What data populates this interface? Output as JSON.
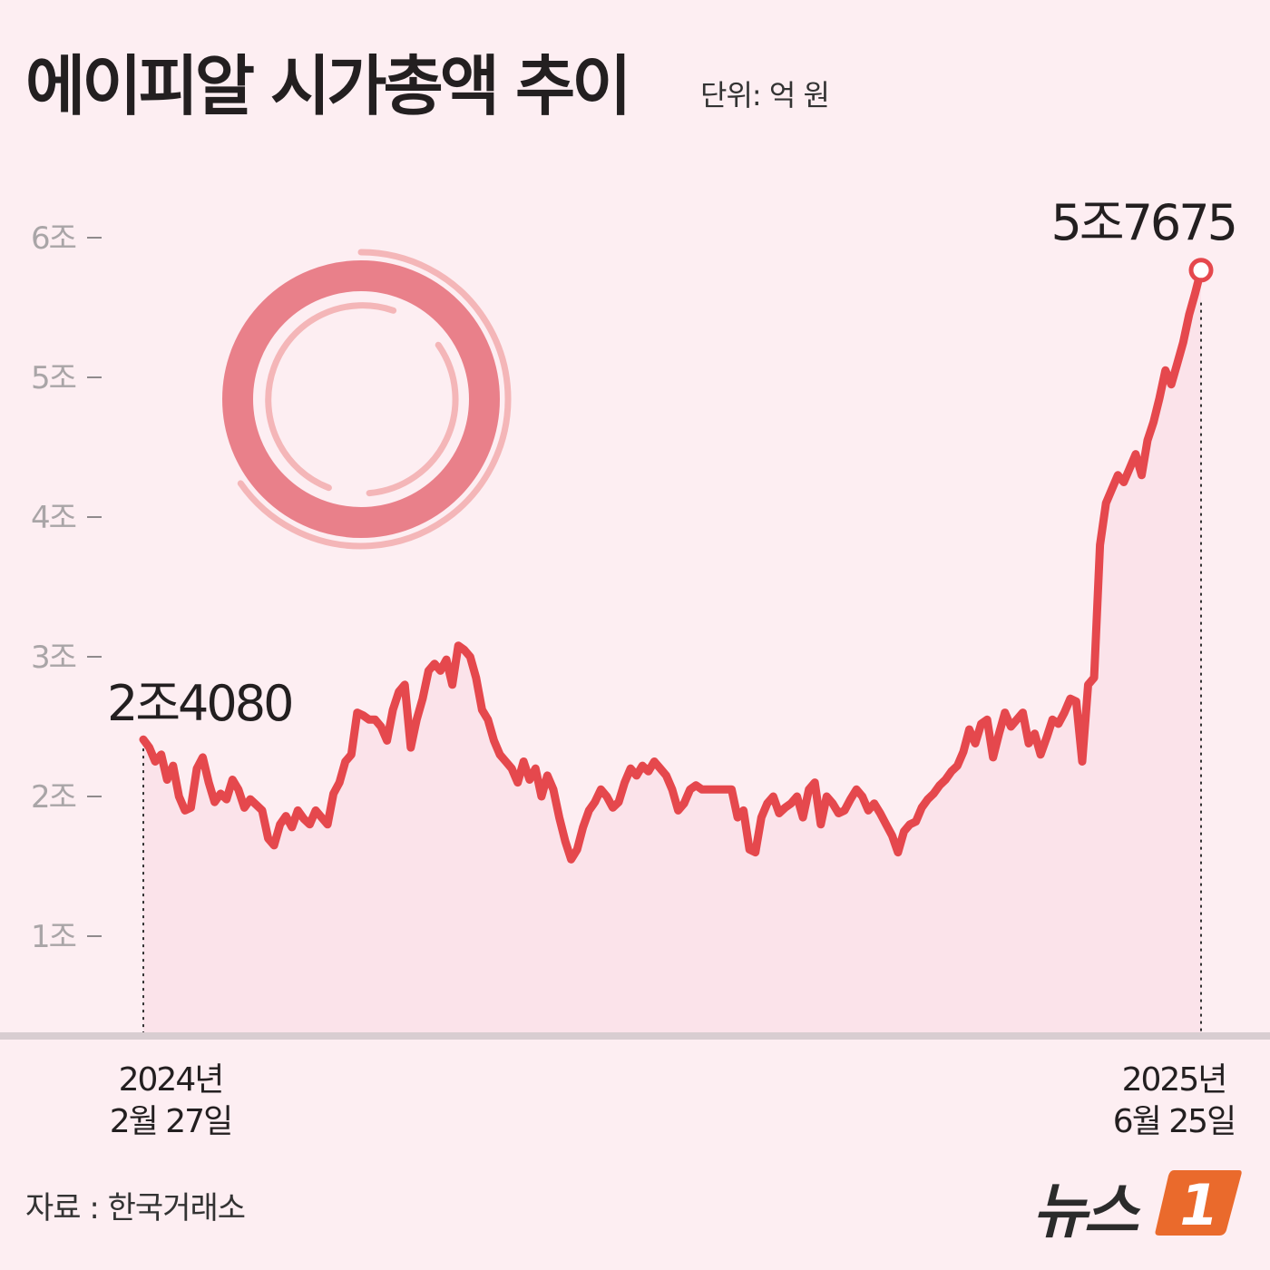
{
  "title": "에이피알 시가총액 추이",
  "unit": "단위: 억 원",
  "source": "자료 : 한국거래소",
  "logo": {
    "text": "뉴스",
    "badge": "1"
  },
  "colors": {
    "background": "#fdeef2",
    "line": "#e5484d",
    "area": "#fbe3ea",
    "ring": "#e9808a",
    "ring_light": "#f4b6b8"
  },
  "chart_data": {
    "type": "area",
    "ylim": [
      0.2,
      6.0
    ],
    "y_unit": "조",
    "y_ticks": [
      1,
      2,
      3,
      4,
      5,
      6
    ],
    "y_tick_labels": [
      "1조",
      "2조",
      "3조",
      "4조",
      "5조",
      "6조"
    ],
    "x_start_label": [
      "2024년",
      "2월 27일"
    ],
    "x_end_label": [
      "2025년",
      "6월 25일"
    ],
    "start_value_label": "2조4080",
    "end_value_label": "5조7675",
    "grid": false,
    "series": [
      {
        "values": [
          2.408,
          2.35,
          2.25,
          2.3,
          2.12,
          2.22,
          2.0,
          1.9,
          1.92,
          2.2,
          2.28,
          2.1,
          1.96,
          2.02,
          1.98,
          2.12,
          2.05,
          1.92,
          1.98,
          1.94,
          1.9,
          1.7,
          1.65,
          1.8,
          1.86,
          1.78,
          1.9,
          1.84,
          1.8,
          1.9,
          1.85,
          1.8,
          2.02,
          2.1,
          2.25,
          2.3,
          2.6,
          2.58,
          2.55,
          2.55,
          2.5,
          2.4,
          2.62,
          2.75,
          2.8,
          2.35,
          2.55,
          2.7,
          2.9,
          2.95,
          2.9,
          2.98,
          2.8,
          3.08,
          3.05,
          3.0,
          2.85,
          2.62,
          2.55,
          2.4,
          2.3,
          2.25,
          2.2,
          2.1,
          2.25,
          2.12,
          2.2,
          2.0,
          2.15,
          2.05,
          1.85,
          1.68,
          1.55,
          1.62,
          1.78,
          1.9,
          1.96,
          2.05,
          2.0,
          1.92,
          1.96,
          2.1,
          2.2,
          2.15,
          2.22,
          2.18,
          2.25,
          2.2,
          2.15,
          2.05,
          1.9,
          1.95,
          2.05,
          2.08,
          2.05,
          2.05,
          2.05,
          2.05,
          2.05,
          2.05,
          1.85,
          1.9,
          1.62,
          1.6,
          1.85,
          1.95,
          2.0,
          1.88,
          1.92,
          1.95,
          2.0,
          1.85,
          2.05,
          2.1,
          1.8,
          2.0,
          1.95,
          1.88,
          1.9,
          1.98,
          2.05,
          2.0,
          1.9,
          1.95,
          1.88,
          1.8,
          1.72,
          1.6,
          1.75,
          1.8,
          1.82,
          1.92,
          1.98,
          2.02,
          2.08,
          2.12,
          2.18,
          2.22,
          2.32,
          2.48,
          2.38,
          2.52,
          2.55,
          2.28,
          2.45,
          2.6,
          2.5,
          2.55,
          2.6,
          2.38,
          2.45,
          2.3,
          2.42,
          2.55,
          2.52,
          2.6,
          2.7,
          2.68,
          2.25,
          2.8,
          2.85,
          3.8,
          4.1,
          4.2,
          4.3,
          4.25,
          4.35,
          4.45,
          4.3,
          4.55,
          4.68,
          4.85,
          5.05,
          4.95,
          5.1,
          5.25,
          5.45,
          5.6,
          5.7675
        ]
      }
    ]
  }
}
